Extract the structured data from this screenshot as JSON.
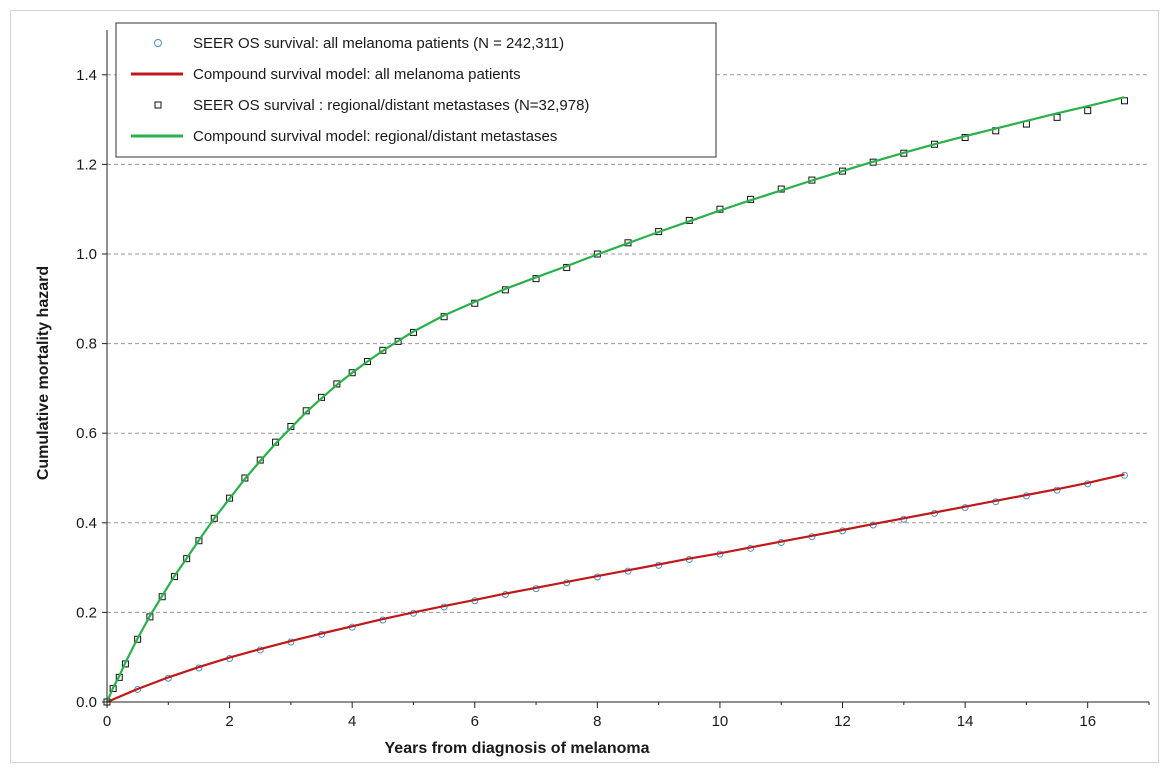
{
  "chart_data": {
    "type": "scatter",
    "xlabel": "Years from diagnosis of melanoma",
    "ylabel": "Cumulative mortality hazard",
    "xlim": [
      0,
      17
    ],
    "ylim": [
      0,
      1.5
    ],
    "x_ticks": [
      0,
      2,
      4,
      6,
      8,
      10,
      12,
      14,
      16
    ],
    "x_tick_labels": [
      "0",
      "2",
      "4",
      "6",
      "8",
      "10",
      "12",
      "14",
      "16"
    ],
    "y_ticks": [
      0,
      0.2,
      0.4,
      0.6,
      0.8,
      1.0,
      1.2,
      1.4
    ],
    "y_tick_labels": [
      "0.0",
      "0.2",
      "0.4",
      "0.6",
      "0.8",
      "1.0",
      "1.2",
      "1.4"
    ],
    "grid": "horizontal dashed",
    "legend_position": "top-left",
    "series": [
      {
        "name": "SEER OS survival: all melanoma patients (N = 242,311)",
        "kind": "markers",
        "marker": "circle",
        "color": "#4a90c8",
        "x": [
          0,
          0.5,
          1,
          1.5,
          2,
          2.5,
          3,
          3.5,
          4,
          4.5,
          5,
          5.5,
          6,
          6.5,
          7,
          7.5,
          8,
          8.5,
          9,
          9.5,
          10,
          10.5,
          11,
          11.5,
          12,
          12.5,
          13,
          13.5,
          14,
          14.5,
          15,
          15.5,
          16,
          16.6
        ],
        "y": [
          0.0,
          0.028,
          0.053,
          0.076,
          0.097,
          0.116,
          0.134,
          0.151,
          0.167,
          0.183,
          0.198,
          0.212,
          0.226,
          0.24,
          0.253,
          0.266,
          0.279,
          0.292,
          0.305,
          0.318,
          0.33,
          0.343,
          0.356,
          0.369,
          0.382,
          0.395,
          0.408,
          0.421,
          0.434,
          0.447,
          0.46,
          0.473,
          0.487,
          0.506
        ]
      },
      {
        "name": "Compound survival model: all melanoma patients",
        "kind": "line",
        "color": "#c01818",
        "x": [
          0,
          0.5,
          1,
          1.5,
          2,
          2.5,
          3,
          3.5,
          4,
          4.5,
          5,
          5.5,
          6,
          6.5,
          7,
          7.5,
          8,
          8.5,
          9,
          9.5,
          10,
          10.5,
          11,
          11.5,
          12,
          12.5,
          13,
          13.5,
          14,
          14.5,
          15,
          15.5,
          16,
          16.6
        ],
        "y": [
          0.0,
          0.029,
          0.055,
          0.078,
          0.099,
          0.118,
          0.136,
          0.153,
          0.169,
          0.185,
          0.2,
          0.214,
          0.228,
          0.242,
          0.255,
          0.268,
          0.281,
          0.294,
          0.307,
          0.32,
          0.332,
          0.345,
          0.358,
          0.371,
          0.384,
          0.397,
          0.41,
          0.423,
          0.436,
          0.449,
          0.462,
          0.475,
          0.489,
          0.508
        ]
      },
      {
        "name": "SEER OS survival : regional/distant metastases (N=32,978)",
        "kind": "markers",
        "marker": "square",
        "color": "#111111",
        "x": [
          0,
          0.1,
          0.2,
          0.3,
          0.5,
          0.7,
          0.9,
          1.1,
          1.3,
          1.5,
          1.75,
          2,
          2.25,
          2.5,
          2.75,
          3,
          3.25,
          3.5,
          3.75,
          4,
          4.25,
          4.5,
          4.75,
          5,
          5.5,
          6,
          6.5,
          7,
          7.5,
          8,
          8.5,
          9,
          9.5,
          10,
          10.5,
          11,
          11.5,
          12,
          12.5,
          13,
          13.5,
          14,
          14.5,
          15,
          15.5,
          16,
          16.6
        ],
        "y": [
          0.0,
          0.03,
          0.055,
          0.085,
          0.14,
          0.19,
          0.235,
          0.28,
          0.32,
          0.36,
          0.41,
          0.455,
          0.5,
          0.54,
          0.58,
          0.615,
          0.65,
          0.68,
          0.71,
          0.735,
          0.76,
          0.785,
          0.805,
          0.825,
          0.86,
          0.89,
          0.92,
          0.945,
          0.97,
          1.0,
          1.025,
          1.05,
          1.075,
          1.1,
          1.122,
          1.145,
          1.165,
          1.185,
          1.205,
          1.225,
          1.245,
          1.26,
          1.275,
          1.29,
          1.305,
          1.32,
          1.342
        ]
      },
      {
        "name": "Compound survival model: regional/distant metastases",
        "kind": "line",
        "color": "#2ab04a",
        "x": [
          0,
          0.1,
          0.2,
          0.3,
          0.5,
          0.7,
          0.9,
          1.1,
          1.3,
          1.5,
          1.75,
          2,
          2.25,
          2.5,
          2.75,
          3,
          3.25,
          3.5,
          3.75,
          4,
          4.25,
          4.5,
          4.75,
          5,
          5.5,
          6,
          6.5,
          7,
          7.5,
          8,
          8.5,
          9,
          9.5,
          10,
          10.5,
          11,
          11.5,
          12,
          12.5,
          13,
          13.5,
          14,
          14.5,
          15,
          15.5,
          16,
          16.6
        ],
        "y": [
          0.0,
          0.032,
          0.058,
          0.088,
          0.142,
          0.192,
          0.237,
          0.281,
          0.321,
          0.361,
          0.41,
          0.454,
          0.498,
          0.538,
          0.577,
          0.612,
          0.647,
          0.678,
          0.708,
          0.735,
          0.76,
          0.784,
          0.806,
          0.827,
          0.863,
          0.893,
          0.922,
          0.948,
          0.973,
          0.999,
          1.024,
          1.049,
          1.073,
          1.097,
          1.12,
          1.142,
          1.164,
          1.185,
          1.206,
          1.226,
          1.245,
          1.263,
          1.28,
          1.297,
          1.314,
          1.33,
          1.35
        ]
      }
    ]
  }
}
